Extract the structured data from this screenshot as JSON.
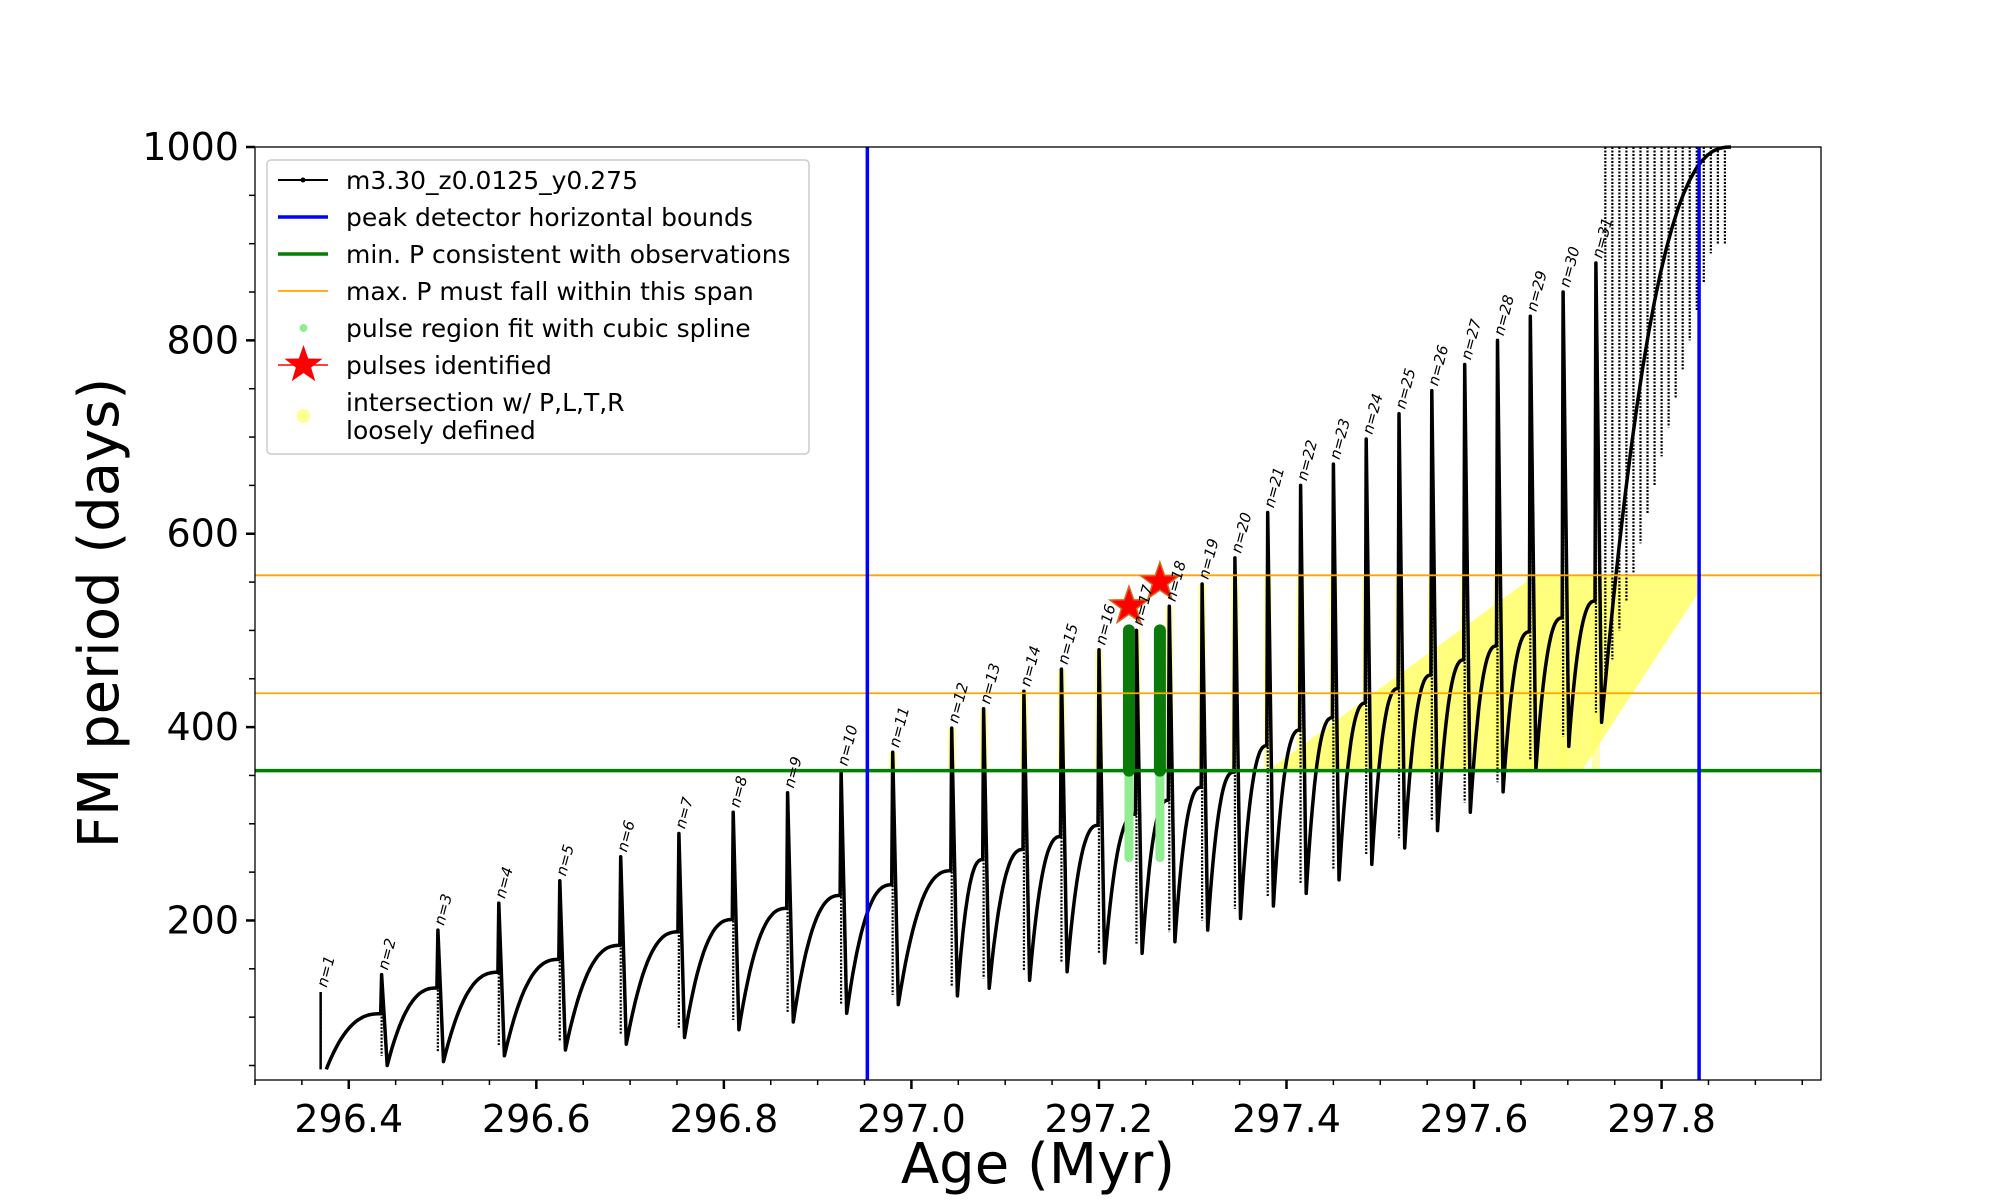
{
  "chart_data": {
    "type": "line",
    "title": "",
    "xlabel": "Age (Myr)",
    "ylabel": "FM period (days)",
    "xlim": [
      296.3,
      297.97
    ],
    "ylim": [
      35,
      1000
    ],
    "x_ticks": [
      "296.4",
      "296.6",
      "296.8",
      "297.0",
      "297.2",
      "297.4",
      "297.6",
      "297.8"
    ],
    "y_ticks": [
      "200",
      "400",
      "600",
      "800",
      "1000"
    ],
    "legend_position": "top-left",
    "legend": [
      {
        "key": "track",
        "label": "m3.30_z0.0125_y0.275",
        "color": "#000000"
      },
      {
        "key": "bounds",
        "label": "peak detector horizontal bounds",
        "color": "#0000ff"
      },
      {
        "key": "minp",
        "label": "min. P consistent with observations",
        "color": "#008000"
      },
      {
        "key": "maxp",
        "label": "max. P must fall within this span",
        "color": "#ffa500"
      },
      {
        "key": "spline",
        "label": "pulse region fit with cubic spline",
        "color": "#90ee90"
      },
      {
        "key": "pulses",
        "label": "pulses identified",
        "color": "#ff0000"
      },
      {
        "key": "intersect",
        "label": "intersection w/ P,L,T,R\nloosely defined",
        "color": "#ffff66"
      }
    ],
    "vertical_lines": [
      296.953,
      297.84
    ],
    "min_period_line": 355,
    "max_period_span": [
      435,
      557
    ],
    "pulses": {
      "ages": [
        296.37,
        296.435,
        296.495,
        296.56,
        296.625,
        296.69,
        296.752,
        296.81,
        296.868,
        296.925,
        296.98,
        297.043,
        297.077,
        297.12,
        297.16,
        297.2,
        297.24,
        297.275,
        297.31,
        297.345,
        297.38,
        297.415,
        297.45,
        297.485,
        297.52,
        297.555,
        297.59,
        297.625,
        297.66,
        297.695,
        297.73
      ],
      "peak_periods": [
        126,
        144,
        190,
        218,
        241,
        266,
        290,
        312,
        332,
        355,
        374,
        399,
        419,
        437,
        460,
        480,
        500,
        525,
        548,
        575,
        622,
        650,
        672,
        698,
        724,
        748,
        775,
        800,
        825,
        850,
        880
      ],
      "trough_periods": [
        46,
        50,
        54,
        60,
        66,
        72,
        79,
        87,
        95,
        104,
        113,
        122,
        130,
        138,
        147,
        156,
        166,
        178,
        190,
        202,
        215,
        228,
        242,
        258,
        275,
        293,
        312,
        333,
        356,
        380,
        405
      ],
      "labels": [
        "n=1",
        "n=2",
        "n=3",
        "n=4",
        "n=5",
        "n=6",
        "n=7",
        "n=8",
        "n=9",
        "n=10",
        "n=11",
        "n=12",
        "n=13",
        "n=14",
        "n=15",
        "n=16",
        "n=17",
        "n=18",
        "n=19",
        "n=20",
        "n=21",
        "n=22",
        "n=23",
        "n=24",
        "n=25",
        "n=26",
        "n=27",
        "n=28",
        "n=29",
        "n=30",
        "n=31"
      ]
    },
    "pulses_identified": [
      {
        "age": 297.232,
        "period": 525
      },
      {
        "age": 297.265,
        "period": 550
      }
    ],
    "spline_regions": [
      {
        "age": 297.232,
        "period_range": [
          265,
          500
        ]
      },
      {
        "age": 297.265,
        "period_range": [
          265,
          500
        ]
      }
    ]
  }
}
